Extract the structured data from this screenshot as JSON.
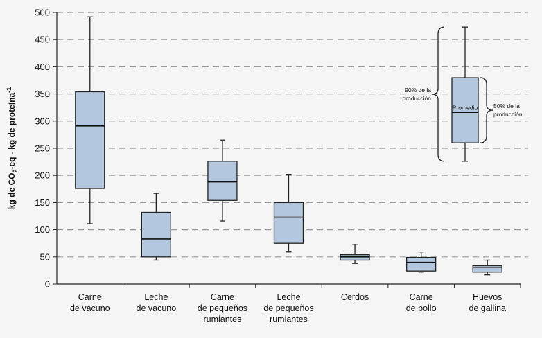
{
  "chart_data": {
    "type": "box",
    "ylabel_parts": [
      "kg de CO",
      "2",
      "-eq - kg de proteína",
      "-1"
    ],
    "ylim": [
      0,
      500
    ],
    "yticks": [
      0,
      50,
      100,
      150,
      200,
      250,
      300,
      350,
      400,
      450,
      500
    ],
    "grid": "dashed horizontal",
    "colors": {
      "box_fill": "#b3c8df",
      "box_stroke": "#222222",
      "grid": "#999999",
      "background": "#f5f5f5"
    },
    "categories": [
      {
        "lines": [
          "Carne",
          "de vacuno"
        ],
        "whisker_low": 111,
        "q1": 176,
        "median": 291,
        "q3": 354,
        "whisker_high": 492
      },
      {
        "lines": [
          "Leche",
          "de vacuno"
        ],
        "whisker_low": 44,
        "q1": 50,
        "median": 83,
        "q3": 132,
        "whisker_high": 167
      },
      {
        "lines": [
          "Carne",
          "de pequeños",
          "rumiantes"
        ],
        "whisker_low": 116,
        "q1": 154,
        "median": 188,
        "q3": 226,
        "whisker_high": 265
      },
      {
        "lines": [
          "Leche",
          "de pequeños",
          "rumiantes"
        ],
        "whisker_low": 59,
        "q1": 75,
        "median": 123,
        "q3": 150,
        "whisker_high": 202
      },
      {
        "lines": [
          "Cerdos"
        ],
        "whisker_low": 38,
        "q1": 44,
        "median": 50,
        "q3": 54,
        "whisker_high": 73
      },
      {
        "lines": [
          "Carne",
          "de pollo"
        ],
        "whisker_low": 22,
        "q1": 24,
        "median": 40,
        "q3": 49,
        "whisker_high": 57
      },
      {
        "lines": [
          "Huevos",
          "de gallina"
        ],
        "whisker_low": 17,
        "q1": 22,
        "median": 31,
        "q3": 34,
        "whisker_high": 44
      }
    ],
    "legend": {
      "label_90": [
        "90% de la",
        "producción"
      ],
      "label_50": [
        "50% de la",
        "producción"
      ],
      "label_mean": "Promedio",
      "placement": "top-right",
      "example": {
        "whisker_low": 226,
        "q1": 260,
        "median": 316,
        "q3": 380,
        "whisker_high": 473
      }
    }
  }
}
